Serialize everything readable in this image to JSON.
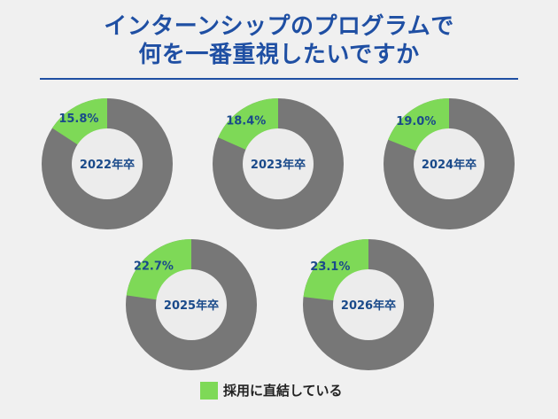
{
  "title_lines": [
    "インターンシップのプログラムで",
    "何を一番重視したいですか"
  ],
  "chart_data": {
    "type": "pie",
    "subtype": "donut",
    "title": "インターンシップのプログラムで何を一番重視したいですか",
    "categories": [
      "2022年卒",
      "2023年卒",
      "2024年卒",
      "2025年卒",
      "2026年卒"
    ],
    "series": [
      {
        "name": "採用に直結している",
        "values": [
          15.8,
          18.4,
          19.0,
          22.7,
          23.1
        ]
      }
    ],
    "value_labels": [
      "15.8%",
      "18.4%",
      "19.0%",
      "22.7%",
      "23.1%"
    ],
    "legend": {
      "entries": [
        "採用に直結している"
      ],
      "placement": "bottom"
    },
    "colors": {
      "highlight": "#7ed957",
      "rest": "#777777",
      "hole": "#ececec",
      "label": "#1a4a8a"
    }
  }
}
